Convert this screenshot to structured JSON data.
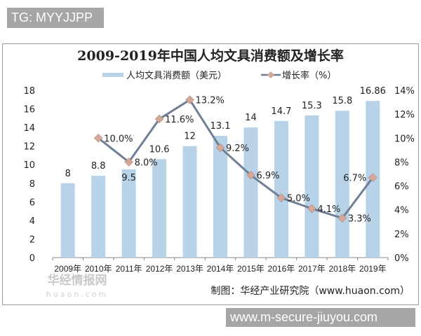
{
  "watermark_top": "TG: MYYJJPP",
  "watermark_bottom": "www.m-secure-jiuyou.com",
  "chart_data": {
    "type": "bar+line",
    "title": "2009-2019年中国人均文具消费额及增长率",
    "categories": [
      "2009年",
      "2010年",
      "2011年",
      "2012年",
      "2013年",
      "2014年",
      "2015年",
      "2016年",
      "2017年",
      "2018年",
      "2019年"
    ],
    "series": [
      {
        "name": "人均文具消费额（美元）",
        "type": "bar",
        "axis": "left",
        "color": "#b8d3e8",
        "values": [
          8,
          8.8,
          9.5,
          10.6,
          12,
          13.1,
          14,
          14.7,
          15.3,
          15.8,
          16.86
        ],
        "labels": [
          "8",
          "8.8",
          "9.5",
          "10.6",
          "12",
          "13.1",
          "14",
          "14.7",
          "15.3",
          "15.8",
          "16.86"
        ]
      },
      {
        "name": "增长率（%）",
        "type": "line",
        "axis": "right",
        "color": "#6f7f95",
        "marker_color": "#d4a898",
        "values": [
          null,
          10.0,
          8.0,
          11.6,
          13.2,
          9.2,
          6.9,
          5.0,
          4.1,
          3.3,
          6.7
        ],
        "labels": [
          null,
          "10.0%",
          "8.0%",
          "11.6%",
          "13.2%",
          "9.2%",
          "6.9%",
          "5.0%",
          "4.1%",
          "3.3%",
          "6.7%"
        ]
      }
    ],
    "y_left": {
      "range": [
        0,
        18
      ],
      "ticks": [
        "0",
        "2",
        "4",
        "6",
        "8",
        "10",
        "12",
        "14",
        "16",
        "18"
      ]
    },
    "y_right": {
      "range": [
        0,
        14
      ],
      "ticks": [
        "0%",
        "2%",
        "4%",
        "6%",
        "8%",
        "10%",
        "12%",
        "14%"
      ]
    },
    "legend_position": "top",
    "grid": false,
    "source": "制图：华经产业研究院（www.huaon.com）",
    "logo_text": "华经情报网",
    "logo_subtext": "huaon.com"
  }
}
